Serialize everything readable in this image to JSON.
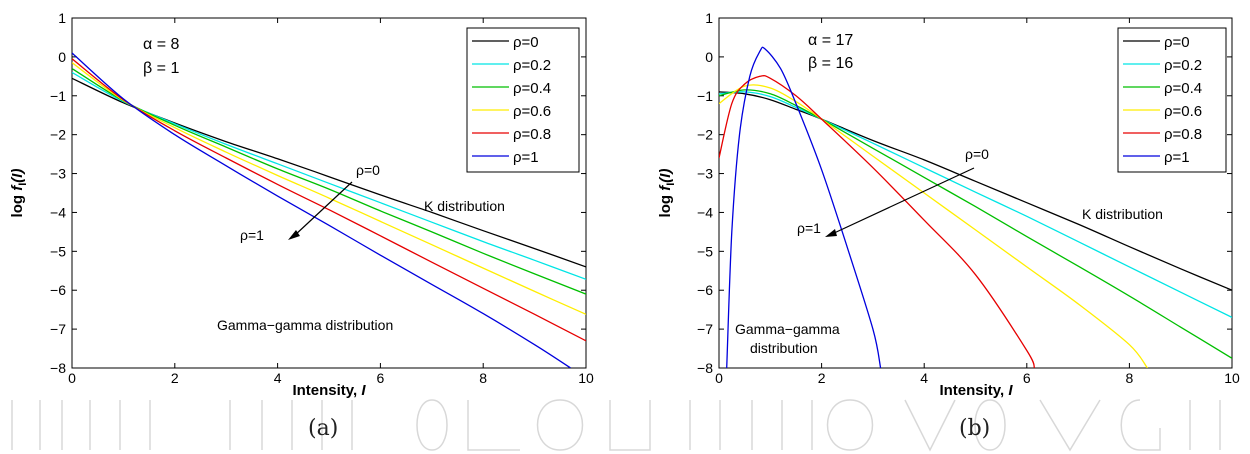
{
  "figure": {
    "captions": [
      "(a)",
      "(b)"
    ]
  },
  "colors": {
    "ρ=0": "#000000",
    "ρ=0.2": "#00e5e5",
    "ρ=0.4": "#00bf00",
    "ρ=0.6": "#ffee00",
    "ρ=0.8": "#e60000",
    "ρ=1": "#0000dd"
  },
  "chart_data": [
    {
      "type": "line",
      "xlabel": "Intensity, I",
      "ylabel": "log f_I(I)",
      "xlim": [
        0,
        10
      ],
      "ylim": [
        -8,
        1
      ],
      "xticks": [
        0,
        2,
        4,
        6,
        8,
        10
      ],
      "yticks": [
        1,
        0,
        -1,
        -2,
        -3,
        -4,
        -5,
        -6,
        -7,
        -8
      ],
      "grid": false,
      "legend_position": "top-right",
      "params": [
        "α = 8",
        "β = 1"
      ],
      "annotations": {
        "arrow_start": "ρ=0",
        "arrow_end": "ρ=1",
        "upper_label": "K distribution",
        "lower_label": [
          "Gamma−gamma distribution"
        ]
      },
      "series": [
        {
          "name": "ρ=0",
          "x": [
            0,
            1,
            2,
            3,
            4,
            5,
            6,
            7,
            8,
            9,
            10
          ],
          "y": [
            -0.55,
            -1.18,
            -1.7,
            -2.18,
            -2.62,
            -3.08,
            -3.55,
            -4.0,
            -4.47,
            -4.93,
            -5.4
          ]
        },
        {
          "name": "ρ=0.2",
          "x": [
            0,
            1,
            2,
            3,
            4,
            5,
            6,
            7,
            8,
            9,
            10
          ],
          "y": [
            -0.4,
            -1.15,
            -1.72,
            -2.25,
            -2.75,
            -3.25,
            -3.75,
            -4.25,
            -4.75,
            -5.23,
            -5.72
          ]
        },
        {
          "name": "ρ=0.4",
          "x": [
            0,
            1,
            2,
            3,
            4,
            5,
            6,
            7,
            8,
            9,
            10
          ],
          "y": [
            -0.3,
            -1.13,
            -1.76,
            -2.32,
            -2.88,
            -3.4,
            -3.96,
            -4.5,
            -5.05,
            -5.58,
            -6.1
          ]
        },
        {
          "name": "ρ=0.6",
          "x": [
            0,
            1,
            2,
            3,
            4,
            5,
            6,
            7,
            8,
            9,
            10
          ],
          "y": [
            -0.15,
            -1.12,
            -1.82,
            -2.45,
            -3.05,
            -3.63,
            -4.23,
            -4.83,
            -5.43,
            -6.03,
            -6.62
          ]
        },
        {
          "name": "ρ=0.8",
          "x": [
            0,
            1,
            2,
            3,
            4,
            5,
            6,
            7,
            8,
            9,
            10
          ],
          "y": [
            -0.05,
            -1.1,
            -1.9,
            -2.6,
            -3.28,
            -3.93,
            -4.6,
            -5.28,
            -5.95,
            -6.62,
            -7.3
          ]
        },
        {
          "name": "ρ=1",
          "x": [
            0,
            1,
            2,
            3,
            4,
            5,
            6,
            7,
            8,
            9,
            9.7
          ],
          "y": [
            0.1,
            -1.08,
            -2.0,
            -2.8,
            -3.58,
            -4.33,
            -5.1,
            -5.85,
            -6.6,
            -7.4,
            -8.0
          ]
        }
      ]
    },
    {
      "type": "line",
      "xlabel": "Intensity, I",
      "ylabel": "log f_I(I)",
      "xlim": [
        0,
        10
      ],
      "ylim": [
        -8,
        1
      ],
      "xticks": [
        0,
        2,
        4,
        6,
        8,
        10
      ],
      "yticks": [
        1,
        0,
        -1,
        -2,
        -3,
        -4,
        -5,
        -6,
        -7,
        -8
      ],
      "grid": false,
      "legend_position": "top-right",
      "params": [
        "α = 17",
        "β = 16"
      ],
      "annotations": {
        "arrow_start": "ρ=0",
        "arrow_end": "ρ=1",
        "upper_label": "K distribution",
        "lower_label": [
          "Gamma−gamma",
          "distribution"
        ]
      },
      "series": [
        {
          "name": "ρ=0",
          "x": [
            0,
            0.5,
            1,
            1.5,
            2,
            3,
            4,
            5,
            6,
            7,
            8,
            9,
            10
          ],
          "y": [
            -0.9,
            -0.95,
            -1.1,
            -1.35,
            -1.6,
            -2.15,
            -2.65,
            -3.2,
            -3.75,
            -4.3,
            -4.88,
            -5.45,
            -6.0
          ]
        },
        {
          "name": "ρ=0.2",
          "x": [
            0,
            0.5,
            1,
            1.5,
            2,
            3,
            4,
            5,
            6,
            7,
            8,
            9,
            10
          ],
          "y": [
            -0.95,
            -0.9,
            -1.02,
            -1.3,
            -1.6,
            -2.22,
            -2.85,
            -3.48,
            -4.1,
            -4.75,
            -5.4,
            -6.05,
            -6.7
          ]
        },
        {
          "name": "ρ=0.4",
          "x": [
            0,
            0.5,
            1,
            1.5,
            2,
            3,
            4,
            5,
            6,
            7,
            8,
            9,
            10
          ],
          "y": [
            -1.0,
            -0.85,
            -0.95,
            -1.25,
            -1.6,
            -2.35,
            -3.1,
            -3.85,
            -4.62,
            -5.38,
            -6.15,
            -6.95,
            -7.75
          ]
        },
        {
          "name": "ρ=0.6",
          "x": [
            0,
            0.5,
            1,
            1.5,
            2,
            3,
            4,
            5,
            6,
            7,
            8,
            8.35
          ],
          "y": [
            -1.2,
            -0.75,
            -0.8,
            -1.15,
            -1.6,
            -2.55,
            -3.5,
            -4.45,
            -5.4,
            -6.35,
            -7.4,
            -8.0
          ]
        },
        {
          "name": "ρ=0.8",
          "x": [
            0,
            0.25,
            0.5,
            0.8,
            1,
            1.5,
            2,
            3,
            4,
            5,
            6,
            6.15
          ],
          "y": [
            -2.6,
            -1.2,
            -0.7,
            -0.5,
            -0.55,
            -1.0,
            -1.6,
            -2.85,
            -4.2,
            -5.6,
            -7.55,
            -8.0
          ]
        },
        {
          "name": "ρ=1",
          "x": [
            0.15,
            0.25,
            0.4,
            0.6,
            0.8,
            0.9,
            1.2,
            1.5,
            2,
            2.5,
            3,
            3.15
          ],
          "y": [
            -8.0,
            -4.5,
            -2.0,
            -0.5,
            0.15,
            0.2,
            -0.3,
            -1.2,
            -2.9,
            -4.9,
            -7.0,
            -8.0
          ]
        }
      ]
    }
  ]
}
